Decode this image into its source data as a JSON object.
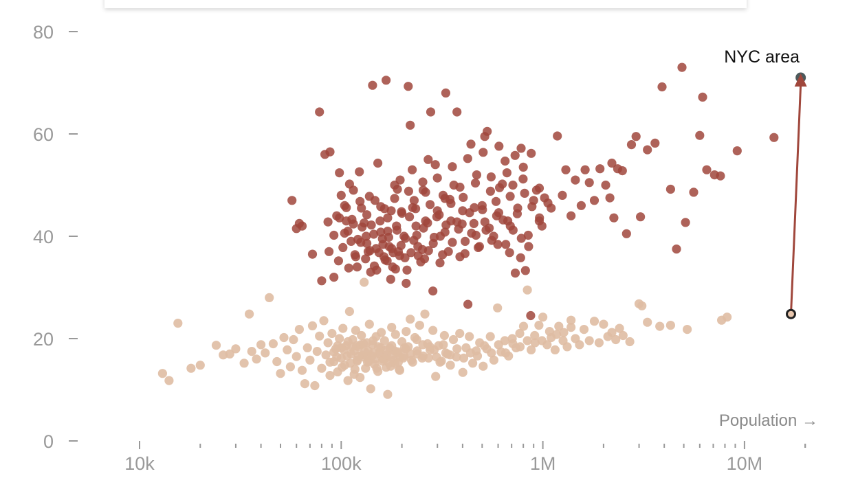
{
  "chart_data": {
    "type": "scatter",
    "title": "",
    "xlabel": "Population →",
    "ylabel": "",
    "x_scale": "log",
    "xlim": [
      7000,
      22000000
    ],
    "ylim": [
      0,
      80
    ],
    "x_ticks": [
      {
        "value": 10000,
        "label": "10k"
      },
      {
        "value": 100000,
        "label": "100k"
      },
      {
        "value": 1000000,
        "label": "1M"
      },
      {
        "value": 10000000,
        "label": "10M"
      }
    ],
    "y_ticks": [
      {
        "value": 0,
        "label": "0"
      },
      {
        "value": 20,
        "label": "20"
      },
      {
        "value": 40,
        "label": "40"
      },
      {
        "value": 60,
        "label": "60"
      },
      {
        "value": 80,
        "label": "80"
      }
    ],
    "grid": false,
    "colors": {
      "high_series": "#a0473c",
      "low_series": "#dfbda3",
      "arrow": "#a0473c",
      "start_marker_stroke": "#222222",
      "end_marker": "#4d5a5c",
      "axis": "#999999"
    },
    "series": [
      {
        "color": "#a0473c",
        "points": [
          [
            13500,
            null
          ]
        ]
      }
    ],
    "annotation": {
      "label": "NYC area",
      "from": {
        "x": 17000000,
        "y": 24.8
      },
      "to": {
        "x": 19000000,
        "y": 71
      }
    }
  }
}
